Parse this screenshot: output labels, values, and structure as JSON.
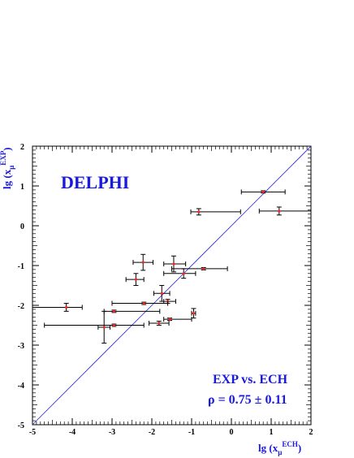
{
  "chart_data": {
    "type": "scatter",
    "title": "",
    "xlim": [
      -5,
      2
    ],
    "ylim": [
      -5,
      2
    ],
    "xticks": [
      -5,
      -4,
      -3,
      -2,
      -1,
      0,
      1,
      2
    ],
    "yticks": [
      -5,
      -4,
      -3,
      -2,
      -1,
      0,
      1,
      2
    ],
    "xlabel": {
      "base": "lg (x",
      "sub": "μ",
      "sup": "ECH",
      "close": ")"
    },
    "ylabel": {
      "base": "lg (x",
      "sub": "μ",
      "sup": "EXP",
      "close": ")"
    },
    "grid": false,
    "reference_line": {
      "from": [
        -5,
        -5
      ],
      "to": [
        2,
        2
      ],
      "color": "#2b2bd8"
    },
    "annotations": {
      "experiment": "DELPHI",
      "comparison": "EXP vs. ECH",
      "correlation": "ρ = 0.75 ± 0.11"
    },
    "colors": {
      "points": "#ff2020",
      "errorbars": "#000000",
      "labels": "#1a1adc"
    },
    "points": [
      {
        "x": 0.8,
        "y": 0.85,
        "xerr_lo": 0.55,
        "xerr_hi": 0.55,
        "yerr_lo": 0.03,
        "yerr_hi": 0.03
      },
      {
        "x": 1.2,
        "y": 0.37,
        "xerr_lo": 0.5,
        "xerr_hi": 0.8,
        "yerr_lo": 0.1,
        "yerr_hi": 0.1
      },
      {
        "x": -0.82,
        "y": 0.35,
        "xerr_lo": 0.2,
        "xerr_hi": 1.05,
        "yerr_lo": 0.08,
        "yerr_hi": 0.08
      },
      {
        "x": -2.22,
        "y": -0.92,
        "xerr_lo": 0.25,
        "xerr_hi": 0.25,
        "yerr_lo": 0.2,
        "yerr_hi": 0.2
      },
      {
        "x": -1.45,
        "y": -0.96,
        "xerr_lo": 0.25,
        "xerr_hi": 0.3,
        "yerr_lo": 0.2,
        "yerr_hi": 0.2
      },
      {
        "x": -0.7,
        "y": -1.08,
        "xerr_lo": 0.8,
        "xerr_hi": 0.6,
        "yerr_lo": 0.03,
        "yerr_hi": 0.03
      },
      {
        "x": -1.2,
        "y": -1.2,
        "xerr_lo": 0.5,
        "xerr_hi": 0.3,
        "yerr_lo": 0.12,
        "yerr_hi": 0.12
      },
      {
        "x": -2.4,
        "y": -1.35,
        "xerr_lo": 0.25,
        "xerr_hi": 0.2,
        "yerr_lo": 0.15,
        "yerr_hi": 0.15
      },
      {
        "x": -1.75,
        "y": -1.7,
        "xerr_lo": 0.2,
        "xerr_hi": 0.2,
        "yerr_lo": 0.2,
        "yerr_hi": 0.2
      },
      {
        "x": -1.6,
        "y": -1.9,
        "xerr_lo": 0.1,
        "xerr_hi": 0.2,
        "yerr_lo": 0.05,
        "yerr_hi": 0.05
      },
      {
        "x": -2.2,
        "y": -1.95,
        "xerr_lo": 0.8,
        "xerr_hi": 0.6,
        "yerr_lo": 0.03,
        "yerr_hi": 0.03
      },
      {
        "x": -4.15,
        "y": -2.05,
        "xerr_lo": 0.85,
        "xerr_hi": 0.4,
        "yerr_lo": 0.1,
        "yerr_hi": 0.1
      },
      {
        "x": -2.95,
        "y": -2.15,
        "xerr_lo": 0.25,
        "xerr_hi": 1.15,
        "yerr_lo": 0.03,
        "yerr_hi": 0.03
      },
      {
        "x": -0.95,
        "y": -2.2,
        "xerr_lo": 0.05,
        "xerr_hi": 0.05,
        "yerr_lo": 0.12,
        "yerr_hi": 0.12
      },
      {
        "x": -1.55,
        "y": -2.35,
        "xerr_lo": 0.15,
        "xerr_hi": 0.55,
        "yerr_lo": 0.03,
        "yerr_hi": 0.03
      },
      {
        "x": -1.82,
        "y": -2.45,
        "xerr_lo": 0.25,
        "xerr_hi": 0.25,
        "yerr_lo": 0.05,
        "yerr_hi": 0.05
      },
      {
        "x": -3.2,
        "y": -2.55,
        "xerr_lo": 0.15,
        "xerr_hi": 0.15,
        "yerr_lo": 0.4,
        "yerr_hi": 0.4
      },
      {
        "x": -2.95,
        "y": -2.5,
        "xerr_lo": 1.75,
        "xerr_hi": 0.75,
        "yerr_lo": 0.03,
        "yerr_hi": 0.03
      }
    ]
  }
}
